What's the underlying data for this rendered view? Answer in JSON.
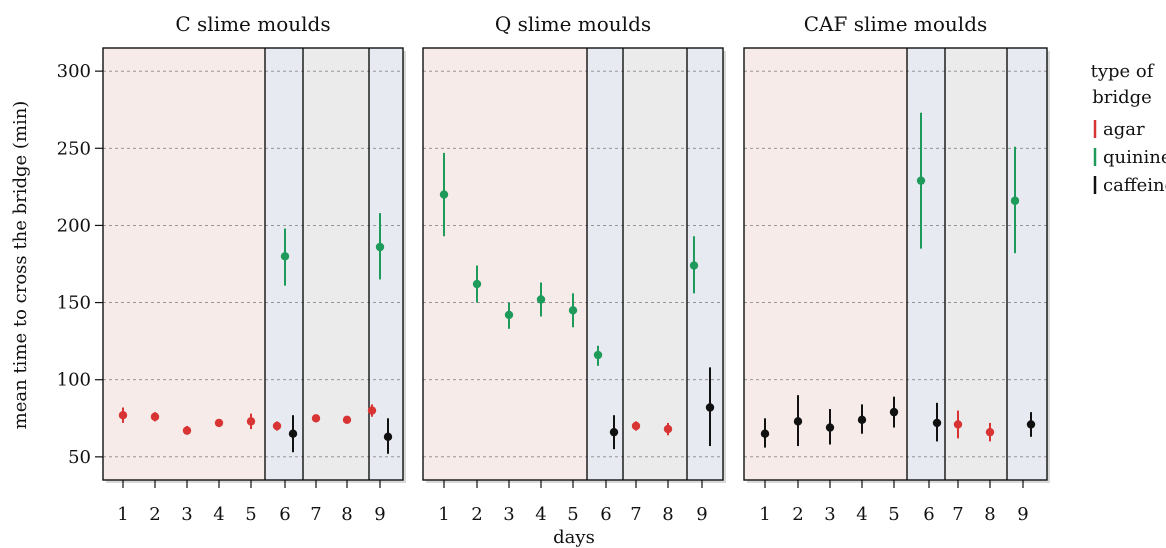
{
  "chart_data": {
    "type": "scatter",
    "xlabel": "days",
    "ylabel": "mean time to cross the bridge (min)",
    "ylim": [
      35,
      315
    ],
    "yticks": [
      50,
      100,
      150,
      200,
      250,
      300
    ],
    "x_ticks": [
      "1",
      "2",
      "3",
      "4",
      "5",
      "6",
      "7",
      "8",
      "9"
    ],
    "grid": true,
    "legend": {
      "title_lines": [
        "type of",
        "bridge"
      ],
      "placement": "right",
      "entries": [
        {
          "name": "agar",
          "color": "#d93434"
        },
        {
          "name": "quinine",
          "color": "#1e9a5a"
        },
        {
          "name": "caffeine",
          "color": "#111111"
        }
      ]
    },
    "shading": {
      "agar_color": "#f6ebe8",
      "bridge_color": "#e8eaf2",
      "recovery_color": "#ebebeb",
      "segments": [
        {
          "days": [
            1,
            5
          ],
          "kind": "agar"
        },
        {
          "days": [
            6,
            6
          ],
          "kind": "bridge"
        },
        {
          "days": [
            7,
            8
          ],
          "kind": "recovery"
        },
        {
          "days": [
            9,
            9
          ],
          "kind": "bridge"
        }
      ]
    },
    "panels": [
      {
        "title": "C slime moulds",
        "points": [
          {
            "day": 1,
            "bridge": "agar",
            "mean": 77,
            "low": 72,
            "high": 82
          },
          {
            "day": 2,
            "bridge": "agar",
            "mean": 76,
            "low": 73,
            "high": 79
          },
          {
            "day": 3,
            "bridge": "agar",
            "mean": 67,
            "low": 65,
            "high": 70
          },
          {
            "day": 4,
            "bridge": "agar",
            "mean": 72,
            "low": 70,
            "high": 74
          },
          {
            "day": 5,
            "bridge": "agar",
            "mean": 73,
            "low": 68,
            "high": 78
          },
          {
            "day": 6,
            "bridge": "agar",
            "mean": 70,
            "low": 67,
            "high": 73,
            "offset": -1
          },
          {
            "day": 6,
            "bridge": "quinine",
            "mean": 180,
            "low": 161,
            "high": 198
          },
          {
            "day": 6,
            "bridge": "caffeine",
            "mean": 65,
            "low": 53,
            "high": 77,
            "offset": 1
          },
          {
            "day": 7,
            "bridge": "agar",
            "mean": 75,
            "low": 73,
            "high": 77
          },
          {
            "day": 8,
            "bridge": "agar",
            "mean": 74,
            "low": 72,
            "high": 76
          },
          {
            "day": 9,
            "bridge": "agar",
            "mean": 80,
            "low": 76,
            "high": 84,
            "offset": -1
          },
          {
            "day": 9,
            "bridge": "quinine",
            "mean": 186,
            "low": 165,
            "high": 208
          },
          {
            "day": 9,
            "bridge": "caffeine",
            "mean": 63,
            "low": 52,
            "high": 75,
            "offset": 1
          }
        ]
      },
      {
        "title": "Q slime moulds",
        "points": [
          {
            "day": 1,
            "bridge": "quinine",
            "mean": 220,
            "low": 193,
            "high": 247
          },
          {
            "day": 2,
            "bridge": "quinine",
            "mean": 162,
            "low": 150,
            "high": 174
          },
          {
            "day": 3,
            "bridge": "quinine",
            "mean": 142,
            "low": 133,
            "high": 150
          },
          {
            "day": 4,
            "bridge": "quinine",
            "mean": 152,
            "low": 141,
            "high": 163
          },
          {
            "day": 5,
            "bridge": "quinine",
            "mean": 145,
            "low": 134,
            "high": 156
          },
          {
            "day": 6,
            "bridge": "quinine",
            "mean": 116,
            "low": 109,
            "high": 122,
            "offset": -1
          },
          {
            "day": 6,
            "bridge": "caffeine",
            "mean": 66,
            "low": 55,
            "high": 77,
            "offset": 1
          },
          {
            "day": 7,
            "bridge": "agar",
            "mean": 70,
            "low": 67,
            "high": 73
          },
          {
            "day": 8,
            "bridge": "agar",
            "mean": 68,
            "low": 64,
            "high": 72
          },
          {
            "day": 9,
            "bridge": "quinine",
            "mean": 174,
            "low": 156,
            "high": 193,
            "offset": -1
          },
          {
            "day": 9,
            "bridge": "caffeine",
            "mean": 82,
            "low": 57,
            "high": 108,
            "offset": 1
          }
        ]
      },
      {
        "title": "CAF slime moulds",
        "points": [
          {
            "day": 1,
            "bridge": "caffeine",
            "mean": 65,
            "low": 56,
            "high": 75
          },
          {
            "day": 2,
            "bridge": "caffeine",
            "mean": 73,
            "low": 57,
            "high": 90
          },
          {
            "day": 3,
            "bridge": "caffeine",
            "mean": 69,
            "low": 58,
            "high": 81
          },
          {
            "day": 4,
            "bridge": "caffeine",
            "mean": 74,
            "low": 65,
            "high": 84
          },
          {
            "day": 5,
            "bridge": "caffeine",
            "mean": 79,
            "low": 69,
            "high": 89
          },
          {
            "day": 6,
            "bridge": "quinine",
            "mean": 229,
            "low": 185,
            "high": 273,
            "offset": -1
          },
          {
            "day": 6,
            "bridge": "caffeine",
            "mean": 72,
            "low": 60,
            "high": 85,
            "offset": 1
          },
          {
            "day": 7,
            "bridge": "agar",
            "mean": 71,
            "low": 62,
            "high": 80
          },
          {
            "day": 8,
            "bridge": "agar",
            "mean": 66,
            "low": 60,
            "high": 72
          },
          {
            "day": 9,
            "bridge": "quinine",
            "mean": 216,
            "low": 182,
            "high": 251,
            "offset": -1
          },
          {
            "day": 9,
            "bridge": "caffeine",
            "mean": 71,
            "low": 63,
            "high": 79,
            "offset": 1
          }
        ]
      }
    ]
  }
}
